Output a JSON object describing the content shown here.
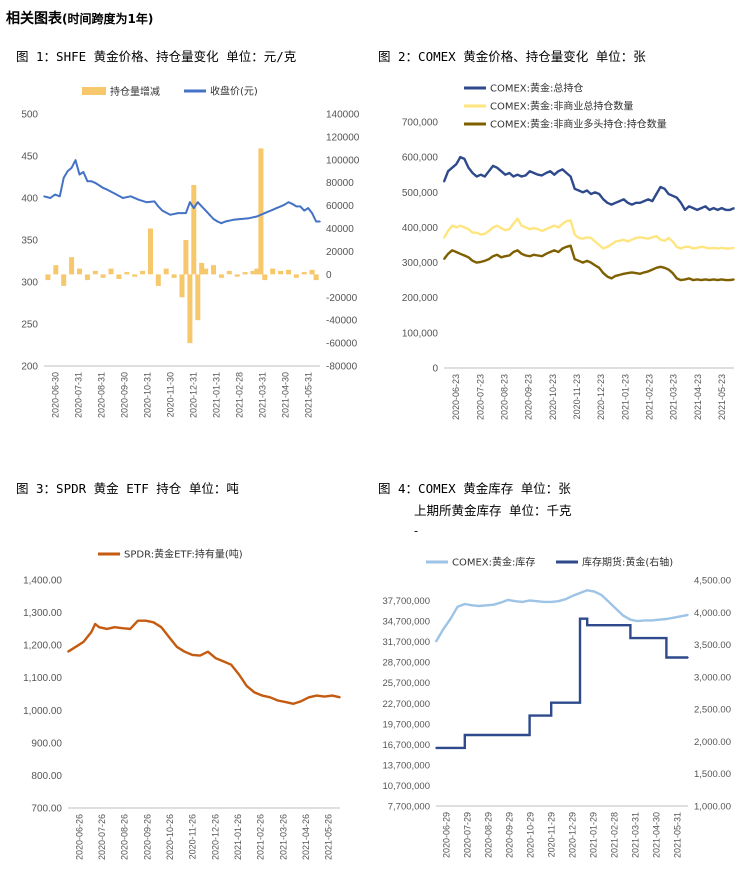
{
  "page": {
    "title": "相关图表",
    "title_note": "(时间跨度为1年)"
  },
  "chart_data": [
    {
      "id": "fig1",
      "type": "bar+line",
      "title": "图 1：SHFE 黄金价格、持仓量变化   单位：元/克",
      "legend": [
        "持仓量增减",
        "收盘价(元)"
      ],
      "colors": {
        "bars": "#f7c76b",
        "line": "#4472c4"
      },
      "ylim_left": [
        200,
        500
      ],
      "yticks_left": [
        "200",
        "250",
        "300",
        "350",
        "400",
        "450",
        "500"
      ],
      "ylim_right": [
        -80000,
        140000
      ],
      "yticks_right": [
        "-80000",
        "-60000",
        "-40000",
        "-20000",
        "0",
        "20000",
        "40000",
        "60000",
        "80000",
        "100000",
        "120000",
        "140000"
      ],
      "x_ticks": [
        "2020-06-30",
        "2020-07-31",
        "2020-08-31",
        "2020-09-30",
        "2020-10-31",
        "2020-11-30",
        "2020-12-31",
        "2021-01-31",
        "2021-02-28",
        "2021-03-31",
        "2021-04-30",
        "2021-05-31"
      ],
      "series": [
        {
          "name": "收盘价(元)",
          "axis": "left",
          "x": [
            0,
            8,
            14,
            20,
            25,
            30,
            35,
            40,
            45,
            50,
            55,
            60,
            65,
            70,
            75,
            80,
            90,
            100,
            110,
            120,
            130,
            140,
            145,
            150,
            160,
            170,
            180,
            185,
            190,
            195,
            200,
            205,
            210,
            215,
            220,
            225,
            230,
            240,
            250,
            260,
            270,
            280,
            285,
            290,
            295,
            300,
            305,
            310,
            315,
            320,
            325,
            330,
            335,
            340,
            345,
            350
          ],
          "values": [
            402,
            400,
            404,
            402,
            424,
            432,
            436,
            445,
            428,
            431,
            420,
            420,
            418,
            415,
            412,
            410,
            405,
            400,
            402,
            398,
            395,
            396,
            390,
            385,
            380,
            382,
            382,
            395,
            388,
            395,
            390,
            385,
            380,
            375,
            372,
            370,
            372,
            374,
            375,
            376,
            378,
            382,
            384,
            386,
            388,
            390,
            392,
            395,
            393,
            390,
            390,
            385,
            388,
            382,
            372,
            372
          ]
        },
        {
          "name": "持仓量增减",
          "axis": "right",
          "x": [
            5,
            15,
            25,
            35,
            45,
            55,
            65,
            75,
            85,
            95,
            105,
            115,
            125,
            135,
            145,
            155,
            165,
            175,
            180,
            185,
            190,
            195,
            200,
            205,
            215,
            225,
            235,
            245,
            255,
            265,
            270,
            275,
            280,
            290,
            300,
            310,
            320,
            330,
            340,
            345
          ],
          "values": [
            -5000,
            8000,
            -10000,
            15000,
            5000,
            -5000,
            3000,
            -3000,
            5000,
            -4000,
            2000,
            -2000,
            3000,
            40000,
            -10000,
            5000,
            -3000,
            -20000,
            30000,
            -60000,
            78000,
            -40000,
            10000,
            5000,
            8000,
            -3000,
            3000,
            -2000,
            2000,
            3000,
            5000,
            110000,
            -5000,
            5000,
            3000,
            4000,
            -3000,
            2000,
            4000,
            -5000
          ]
        }
      ]
    },
    {
      "id": "fig2",
      "type": "line",
      "title": "图 2：COMEX 黄金价格、持仓量变化   单位：张",
      "legend": [
        "COMEX:黄金:总持仓",
        "COMEX:黄金:非商业总持仓数量",
        "COMEX:黄金:非商业多头持仓:持仓数量"
      ],
      "colors": [
        "#2e4a8c",
        "#ffe57f",
        "#7f6000"
      ],
      "ylim": [
        0,
        700000
      ],
      "yticks": [
        "0",
        "100,000",
        "200,000",
        "300,000",
        "400,000",
        "500,000",
        "600,000",
        "700,000"
      ],
      "x_ticks": [
        "2020-06-23",
        "2020-07-23",
        "2020-08-23",
        "2020-09-23",
        "2020-10-23",
        "2020-11-23",
        "2020-12-23",
        "2021-01-23",
        "2021-02-23",
        "2021-03-23",
        "2021-04-23",
        "2021-05-23"
      ],
      "x": [
        0,
        5,
        10,
        15,
        20,
        25,
        30,
        35,
        40,
        45,
        50,
        55,
        60,
        65,
        70,
        75,
        80,
        85,
        90,
        95,
        100,
        105,
        110,
        115,
        120,
        125,
        130,
        135,
        140,
        145,
        150,
        155,
        160,
        165,
        170,
        175,
        180,
        185,
        190,
        195,
        200,
        205,
        210,
        215,
        220,
        225,
        230,
        235,
        240,
        245,
        250,
        255,
        260,
        265,
        270,
        275,
        280,
        285,
        290,
        295,
        300,
        305,
        310,
        315,
        320,
        325,
        330,
        335,
        340,
        345,
        350,
        355
      ],
      "series": [
        {
          "name": "COMEX:黄金:总持仓",
          "values": [
            530000,
            560000,
            570000,
            580000,
            600000,
            595000,
            570000,
            555000,
            545000,
            550000,
            545000,
            560000,
            575000,
            570000,
            560000,
            550000,
            555000,
            545000,
            550000,
            545000,
            548000,
            560000,
            555000,
            550000,
            548000,
            555000,
            560000,
            550000,
            560000,
            565000,
            555000,
            545000,
            510000,
            505000,
            500000,
            505000,
            495000,
            500000,
            495000,
            480000,
            470000,
            465000,
            470000,
            475000,
            480000,
            470000,
            465000,
            470000,
            470000,
            475000,
            480000,
            475000,
            495000,
            515000,
            510000,
            495000,
            490000,
            485000,
            470000,
            450000,
            460000,
            455000,
            450000,
            455000,
            460000,
            450000,
            455000,
            450000,
            455000,
            450000,
            450000,
            455000
          ]
        },
        {
          "name": "COMEX:黄金:非商业总持仓数量",
          "values": [
            370000,
            390000,
            405000,
            400000,
            405000,
            400000,
            395000,
            385000,
            385000,
            380000,
            382000,
            390000,
            400000,
            405000,
            398000,
            392000,
            395000,
            410000,
            425000,
            405000,
            400000,
            395000,
            398000,
            395000,
            390000,
            395000,
            400000,
            405000,
            400000,
            410000,
            418000,
            420000,
            380000,
            370000,
            368000,
            372000,
            370000,
            360000,
            350000,
            340000,
            345000,
            352000,
            360000,
            362000,
            365000,
            360000,
            365000,
            370000,
            372000,
            370000,
            368000,
            372000,
            375000,
            365000,
            362000,
            370000,
            360000,
            345000,
            340000,
            345000,
            345000,
            340000,
            342000,
            345000,
            343000,
            340000,
            342000,
            340000,
            342000,
            340000,
            340000,
            342000
          ]
        },
        {
          "name": "COMEX:黄金:非商业多头持仓:持仓数量",
          "values": [
            310000,
            325000,
            335000,
            330000,
            325000,
            320000,
            315000,
            305000,
            300000,
            302000,
            305000,
            310000,
            318000,
            322000,
            315000,
            318000,
            320000,
            330000,
            335000,
            325000,
            320000,
            318000,
            322000,
            320000,
            318000,
            325000,
            330000,
            335000,
            330000,
            340000,
            345000,
            348000,
            310000,
            305000,
            300000,
            305000,
            300000,
            292000,
            285000,
            270000,
            260000,
            255000,
            262000,
            265000,
            268000,
            270000,
            272000,
            270000,
            268000,
            272000,
            275000,
            280000,
            285000,
            288000,
            285000,
            280000,
            270000,
            255000,
            250000,
            252000,
            255000,
            250000,
            252000,
            250000,
            252000,
            250000,
            252000,
            250000,
            252000,
            250000,
            250000,
            252000
          ]
        }
      ]
    },
    {
      "id": "fig3",
      "type": "line",
      "title": "图 3：SPDR 黄金 ETF 持仓    单位：吨",
      "legend": [
        "SPDR:黄金ETF:持有量(吨)"
      ],
      "colors": [
        "#c55a11"
      ],
      "ylim": [
        700,
        1400
      ],
      "yticks": [
        "700.00",
        "800.00",
        "900.00",
        "1,000.00",
        "1,100.00",
        "1,200.00",
        "1,300.00",
        "1,400.00"
      ],
      "x_ticks": [
        "2020-06-26",
        "2020-07-26",
        "2020-08-26",
        "2020-09-26",
        "2020-10-26",
        "2020-11-26",
        "2020-12-26",
        "2021-01-26",
        "2021-02-26",
        "2021-03-26",
        "2021-04-26",
        "2021-05-26"
      ],
      "x": [
        0,
        10,
        20,
        30,
        35,
        40,
        50,
        60,
        70,
        80,
        90,
        100,
        110,
        120,
        130,
        140,
        150,
        160,
        170,
        180,
        190,
        200,
        210,
        220,
        230,
        240,
        250,
        260,
        270,
        280,
        290,
        300,
        310,
        320,
        330,
        340,
        350
      ],
      "series": [
        {
          "name": "SPDR:黄金ETF:持有量(吨)",
          "values": [
            1180,
            1195,
            1210,
            1240,
            1265,
            1255,
            1250,
            1255,
            1252,
            1250,
            1275,
            1275,
            1270,
            1255,
            1225,
            1195,
            1180,
            1170,
            1168,
            1180,
            1160,
            1150,
            1140,
            1110,
            1075,
            1055,
            1045,
            1040,
            1030,
            1025,
            1020,
            1028,
            1040,
            1045,
            1042,
            1045,
            1040
          ]
        }
      ]
    },
    {
      "id": "fig4",
      "type": "line",
      "title": "图 4：COMEX 黄金库存   单位：张",
      "title_line2": "上期所黄金库存   单位：千克",
      "legend": [
        "COMEX:黄金:库存",
        "库存期货:黄金(右轴)"
      ],
      "colors": [
        "#9dc3e6",
        "#2e4a8c"
      ],
      "ylim_left": [
        7700000,
        40700000
      ],
      "yticks_left": [
        "7,700,000",
        "10,700,000",
        "13,700,000",
        "16,700,000",
        "19,700,000",
        "22,700,000",
        "25,700,000",
        "28,700,000",
        "31,700,000",
        "34,700,000",
        "37,700,000"
      ],
      "ylim_right": [
        1000,
        4500
      ],
      "yticks_right": [
        "1,000.00",
        "1,500.00",
        "2,000.00",
        "2,500.00",
        "3,000.00",
        "3,500.00",
        "4,000.00",
        "4,500.00"
      ],
      "x_ticks": [
        "2020-06-29",
        "2020-07-29",
        "2020-08-29",
        "2020-09-29",
        "2020-10-29",
        "2020-11-29",
        "2020-12-29",
        "2021-01-29",
        "2021-02-28",
        "2021-03-31",
        "2021-04-30",
        "2021-05-31"
      ],
      "series": [
        {
          "name": "COMEX:黄金:库存",
          "axis": "left",
          "x": [
            0,
            10,
            20,
            30,
            40,
            50,
            60,
            70,
            80,
            90,
            100,
            110,
            120,
            130,
            140,
            150,
            160,
            170,
            180,
            190,
            200,
            210,
            220,
            230,
            240,
            250,
            260,
            270,
            280,
            290,
            300,
            310,
            320,
            330,
            340,
            350
          ],
          "values": [
            31700000,
            33500000,
            35000000,
            36800000,
            37200000,
            37000000,
            36900000,
            37000000,
            37100000,
            37400000,
            37800000,
            37600000,
            37500000,
            37700000,
            37600000,
            37500000,
            37500000,
            37600000,
            37900000,
            38400000,
            38800000,
            39200000,
            39000000,
            38500000,
            37500000,
            36500000,
            35500000,
            34900000,
            34700000,
            34800000,
            34800000,
            34900000,
            35000000,
            35200000,
            35400000,
            35600000
          ]
        },
        {
          "name": "库存期货:黄金(右轴)",
          "axis": "right",
          "x": [
            0,
            20,
            40,
            50,
            60,
            70,
            80,
            90,
            100,
            110,
            120,
            130,
            140,
            150,
            160,
            170,
            180,
            190,
            200,
            210,
            220,
            230,
            240,
            250,
            260,
            270,
            280,
            290,
            300,
            310,
            320,
            330,
            340,
            350
          ],
          "values": [
            1900,
            1900,
            2100,
            2100,
            2100,
            2100,
            2100,
            2100,
            2100,
            2100,
            2100,
            2400,
            2400,
            2400,
            2600,
            2600,
            2600,
            2600,
            3900,
            3800,
            3800,
            3800,
            3800,
            3800,
            3800,
            3600,
            3600,
            3600,
            3600,
            3600,
            3300,
            3300,
            3300,
            3300
          ]
        }
      ]
    }
  ]
}
